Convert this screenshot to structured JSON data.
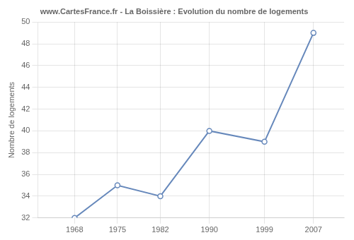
{
  "chart_data": {
    "type": "line",
    "title": "www.CartesFrance.fr - La Boissière : Evolution du nombre de logements",
    "ylabel": "Nombre de logements",
    "x": [
      1968,
      1975,
      1982,
      1990,
      1999,
      2007
    ],
    "values": [
      32,
      35,
      34,
      40,
      39,
      49
    ],
    "color": "#6688bb",
    "marker": "circle",
    "xlim": [
      1962,
      2012
    ],
    "ylim": [
      32,
      50
    ],
    "xticks": [
      1968,
      1975,
      1982,
      1990,
      1999,
      2007
    ],
    "yticks": [
      32,
      34,
      36,
      38,
      40,
      42,
      44,
      46,
      48,
      50
    ],
    "grid": true
  }
}
